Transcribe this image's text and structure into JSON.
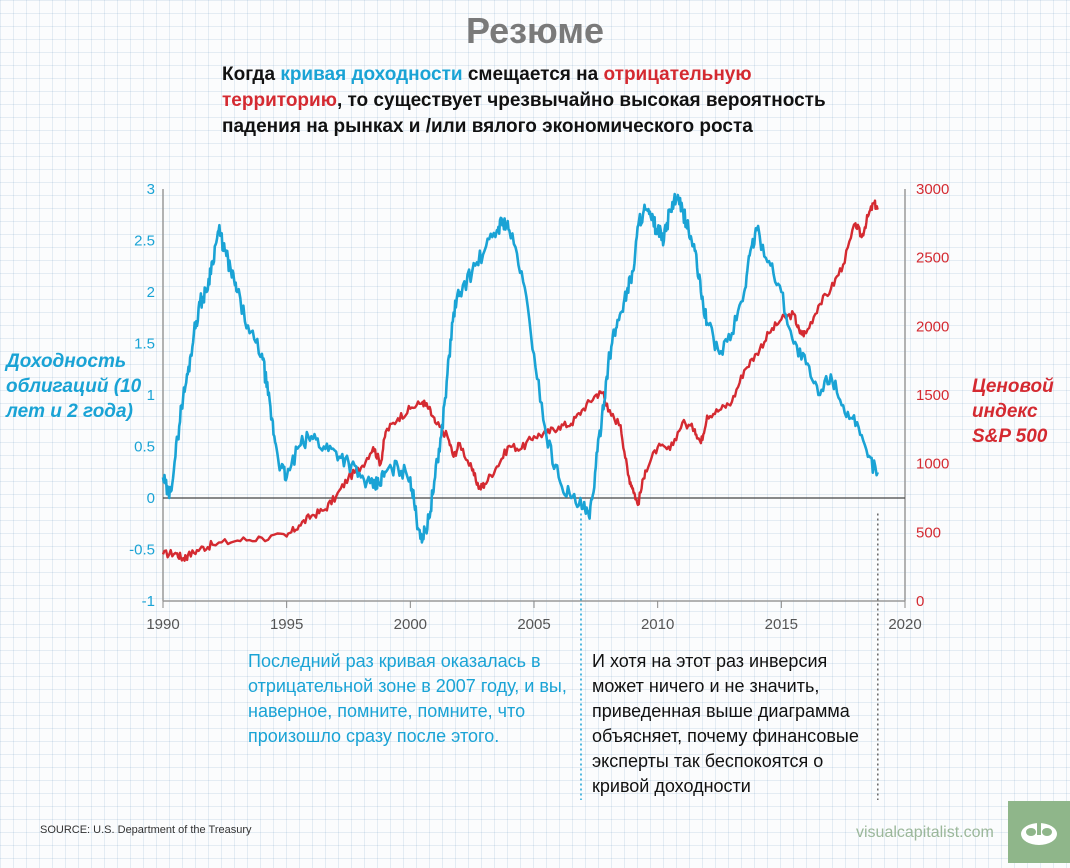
{
  "page": {
    "title": "Резюме",
    "headline": {
      "part1": "Когда ",
      "part2": "кривая доходности",
      "part3": " смещается на ",
      "part4": "отрицательную территорию",
      "part5": ", то существует чрезвычайно высокая вероятность падения на рынках и /или вялого экономического роста"
    },
    "left_axis_label": "Доходность облигаций (10 лет и 2 года)",
    "right_axis_label": "Ценовой индекс S&P 500",
    "note_2007": "Последний раз кривая оказалась в отрицательной зоне в 2007 году, и вы, наверное, помните, помните, что произошло сразу после этого.",
    "note_now": "И хотя на этот раз инверсия может ничего и не значить, приведенная выше диаграмма объясняет, почему финансовые эксперты так беспокоятся о кривой доходности",
    "source": "SOURCE:  U.S. Department of the Treasury",
    "brand": "visualcapitalist.com",
    "brand_icon": "visual-capitalist-logo-icon"
  },
  "colors": {
    "spread": "#1aa3d5",
    "sp500": "#d42a31",
    "axis": "#555555",
    "brand": "#8fb68a"
  },
  "chart_data": {
    "type": "line",
    "x_ticks": [
      "1990",
      "1995",
      "2000",
      "2005",
      "2010",
      "2015",
      "2020"
    ],
    "xlim": [
      1990,
      2020
    ],
    "left_axis": {
      "ticks": [
        "3",
        "2.5",
        "2",
        "1.5",
        "1",
        "0.5",
        "0",
        "-0.5",
        "-1"
      ],
      "ylim": [
        -1,
        3
      ]
    },
    "right_axis": {
      "ticks": [
        "3000",
        "2500",
        "2000",
        "1500",
        "1000",
        "500",
        "0"
      ],
      "ylim": [
        0,
        3000
      ]
    },
    "reference_lines": [
      {
        "axis": "left",
        "y": 0
      },
      {
        "x": 2006.9
      },
      {
        "x": 2018.9
      }
    ],
    "series": [
      {
        "axis": "left",
        "x": [
          1990.0,
          1990.25,
          1990.5,
          1990.75,
          1991.0,
          1991.25,
          1991.5,
          1991.75,
          1992.0,
          1992.25,
          1992.5,
          1992.75,
          1993.0,
          1993.5,
          1994.0,
          1994.25,
          1994.5,
          1994.75,
          1995.0,
          1995.5,
          1996.0,
          1996.5,
          1997.0,
          1997.5,
          1998.0,
          1998.5,
          1998.75,
          1999.0,
          1999.5,
          2000.0,
          2000.25,
          2000.5,
          2000.75,
          2001.0,
          2001.25,
          2001.5,
          2001.75,
          2002.0,
          2002.5,
          2003.0,
          2003.5,
          2003.75,
          2004.0,
          2004.5,
          2005.0,
          2005.5,
          2006.0,
          2006.5,
          2007.0,
          2007.25,
          2007.5,
          2007.75,
          2008.0,
          2008.25,
          2008.5,
          2008.75,
          2009.0,
          2009.25,
          2009.5,
          2009.75,
          2010.0,
          2010.25,
          2010.5,
          2010.75,
          2011.0,
          2011.25,
          2011.5,
          2011.75,
          2012.0,
          2012.5,
          2013.0,
          2013.5,
          2013.75,
          2014.0,
          2014.5,
          2015.0,
          2015.5,
          2016.0,
          2016.5,
          2017.0,
          2017.5,
          2018.0,
          2018.5,
          2018.9
        ],
        "y": [
          0.2,
          0.0,
          0.4,
          0.9,
          1.2,
          1.6,
          1.9,
          2.0,
          2.3,
          2.6,
          2.4,
          2.2,
          2.0,
          1.6,
          1.4,
          1.0,
          0.6,
          0.3,
          0.2,
          0.5,
          0.6,
          0.5,
          0.45,
          0.35,
          0.2,
          0.1,
          0.15,
          0.25,
          0.3,
          0.2,
          -0.2,
          -0.4,
          -0.2,
          0.2,
          0.6,
          1.2,
          1.8,
          2.0,
          2.2,
          2.4,
          2.6,
          2.7,
          2.6,
          2.2,
          1.4,
          0.6,
          0.2,
          0.0,
          -0.1,
          -0.2,
          0.3,
          0.8,
          1.3,
          1.6,
          1.8,
          2.0,
          2.2,
          2.7,
          2.8,
          2.7,
          2.6,
          2.5,
          2.8,
          2.9,
          2.8,
          2.6,
          2.4,
          2.0,
          1.7,
          1.4,
          1.6,
          2.0,
          2.4,
          2.6,
          2.3,
          2.0,
          1.5,
          1.3,
          1.0,
          1.2,
          0.9,
          0.7,
          0.4,
          0.25
        ]
      },
      {
        "axis": "right",
        "x": [
          1990.0,
          1990.5,
          1990.8,
          1991.0,
          1991.5,
          1992.0,
          1993.0,
          1994.0,
          1995.0,
          1995.5,
          1996.0,
          1996.5,
          1997.0,
          1997.5,
          1998.0,
          1998.5,
          1998.8,
          1999.0,
          1999.5,
          2000.0,
          2000.5,
          2000.75,
          2001.0,
          2001.5,
          2001.75,
          2002.0,
          2002.5,
          2002.8,
          2003.0,
          2003.5,
          2004.0,
          2004.5,
          2005.0,
          2005.5,
          2006.0,
          2006.5,
          2007.0,
          2007.5,
          2007.8,
          2008.0,
          2008.5,
          2008.8,
          2009.0,
          2009.2,
          2009.5,
          2010.0,
          2010.5,
          2011.0,
          2011.5,
          2011.75,
          2012.0,
          2012.5,
          2013.0,
          2013.5,
          2014.0,
          2014.5,
          2015.0,
          2015.5,
          2015.75,
          2016.0,
          2016.5,
          2017.0,
          2017.5,
          2018.0,
          2018.25,
          2018.5,
          2018.75,
          2018.9
        ],
        "y": [
          340,
          350,
          310,
          330,
          380,
          410,
          440,
          460,
          470,
          550,
          620,
          660,
          760,
          900,
          970,
          1120,
          1000,
          1230,
          1330,
          1400,
          1450,
          1400,
          1300,
          1200,
          1050,
          1150,
          950,
          820,
          850,
          980,
          1130,
          1110,
          1200,
          1220,
          1270,
          1290,
          1400,
          1500,
          1520,
          1380,
          1280,
          920,
          820,
          700,
          950,
          1120,
          1100,
          1300,
          1250,
          1150,
          1350,
          1390,
          1450,
          1680,
          1800,
          1950,
          2050,
          2090,
          1950,
          1950,
          2150,
          2270,
          2450,
          2750,
          2650,
          2800,
          2900,
          2850
        ]
      }
    ]
  }
}
